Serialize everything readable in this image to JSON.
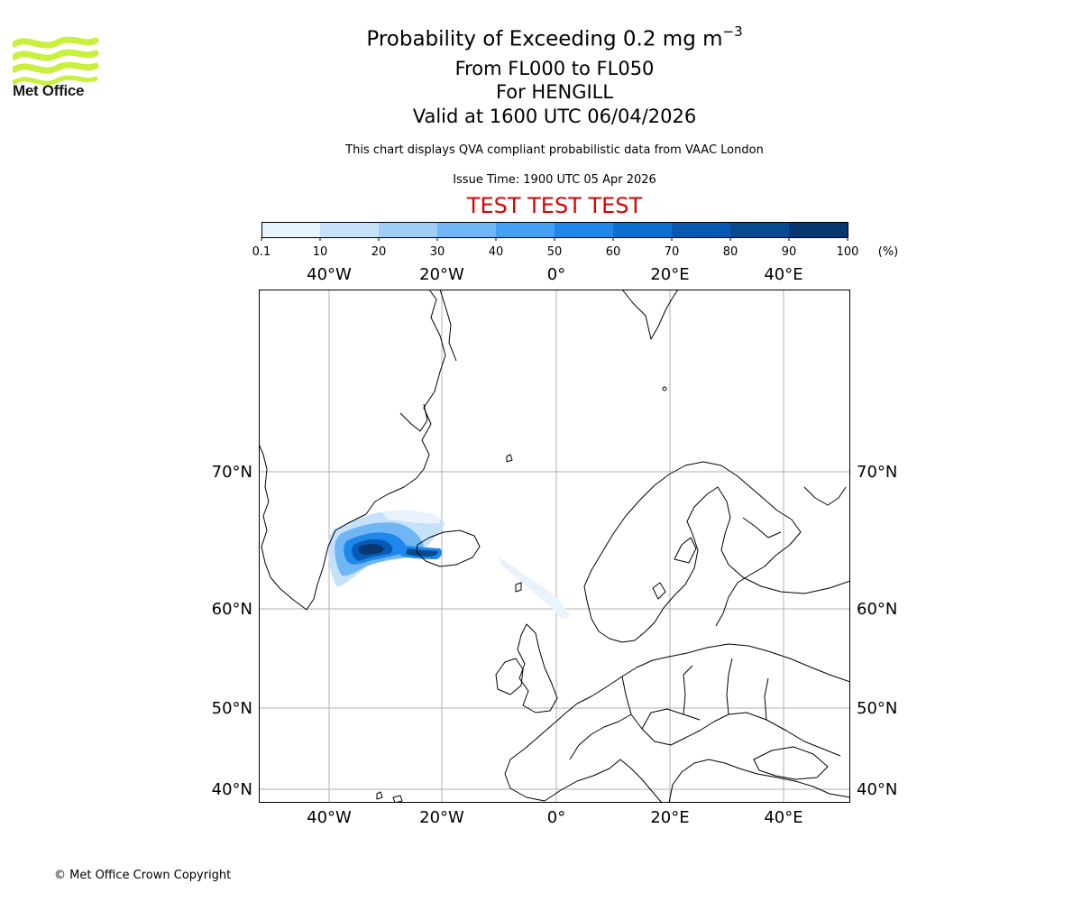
{
  "branding": {
    "logo_text": "Met Office",
    "logo_color": "#c8f03c",
    "copyright": "© Met Office Crown Copyright"
  },
  "header": {
    "title_prefix": "Probability of Exceeding 0.2 mg m",
    "title_exponent": "−3",
    "level_range": "From FL000 to FL050",
    "location": "For HENGILL",
    "valid_time": "Valid at 1600 UTC 06/04/2026",
    "note": "This chart displays QVA compliant probabilistic data from VAAC London",
    "issue_time": "Issue Time: 1900 UTC 05 Apr 2026",
    "test_banner": "TEST TEST TEST",
    "test_color": "#e00000"
  },
  "legend": {
    "unit": "(%)",
    "ticks": [
      "0.1",
      "10",
      "20",
      "30",
      "40",
      "50",
      "60",
      "70",
      "80",
      "90",
      "100"
    ],
    "colors": [
      "#e8f3fd",
      "#c6e2fa",
      "#9fcdf7",
      "#70b6f5",
      "#44a0f2",
      "#1e88ea",
      "#0b6fd2",
      "#065ab3",
      "#064a92",
      "#063770"
    ]
  },
  "map": {
    "type": "probability-map",
    "lon_ticks": [
      "40°W",
      "20°W",
      "0°",
      "20°E",
      "40°E"
    ],
    "lat_ticks": [
      "70°N",
      "60°N",
      "50°N",
      "40°N"
    ],
    "lon_range": [
      -52,
      52
    ],
    "lat_range": [
      39,
      79
    ],
    "gridlines": true,
    "plume": {
      "region": "South-east Greenland coast to south-west Iceland",
      "max_probability_band": "90-100"
    }
  }
}
